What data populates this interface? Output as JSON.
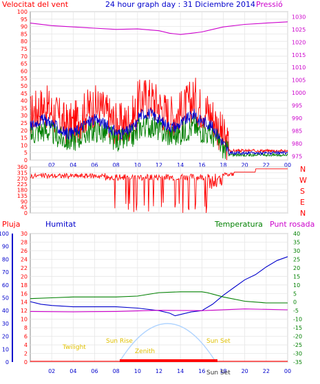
{
  "header": {
    "title": "24 hour graph day : 31 Diciembre 2014",
    "left_label": "Velocitat del vent",
    "right_label": "Pressió"
  },
  "wind_dir_labels": [
    "N",
    "W",
    "S",
    "E",
    "N"
  ],
  "bottom_labels": {
    "pluja": "Pluja",
    "humitat": "Humitat",
    "temperatura": "Temperatura",
    "punt_rosada": "Punt rosada"
  },
  "sun_labels": {
    "twilight_am": "Twilight",
    "sun_rise": "Sun Rise",
    "zenith": "Zenith",
    "sun_set": "Sun Set",
    "twilight_pm": "Sun Set"
  },
  "colors": {
    "red": "#ff0000",
    "blue": "#0000cc",
    "green": "#008000",
    "magenta": "#cc00cc",
    "sun": "#b0d4ff",
    "sunlabel": "#e0c000"
  },
  "chart_data": [
    {
      "type": "line",
      "name": "wind_and_pressure",
      "x_ticks": [
        "02",
        "04",
        "06",
        "08",
        "10",
        "12",
        "14",
        "16",
        "18",
        "20",
        "22",
        "00"
      ],
      "left_axis": [
        0,
        5,
        10,
        15,
        20,
        25,
        30,
        35,
        40,
        45,
        50,
        55,
        60,
        65,
        70,
        75,
        80,
        85,
        90,
        95,
        100
      ],
      "right_axis": [
        975,
        980,
        985,
        990,
        995,
        1000,
        1005,
        1010,
        1015,
        1020,
        1025,
        1030
      ],
      "left_ylim": [
        0,
        100
      ],
      "right_ylim": [
        973.5,
        1032
      ],
      "series": [
        {
          "name": "Pressió",
          "axis": "right",
          "x": [
            0,
            2,
            4,
            6,
            8,
            10,
            12,
            13,
            14,
            15,
            16,
            17,
            18,
            20,
            22,
            24
          ],
          "values": [
            1027.5,
            1026.5,
            1026,
            1025.5,
            1025,
            1025.2,
            1024.5,
            1023.5,
            1023,
            1023.5,
            1024,
            1025,
            1026,
            1027,
            1027.5,
            1028
          ]
        }
      ]
    },
    {
      "type": "line",
      "name": "wind_direction",
      "y_ticks": [
        0,
        45,
        90,
        135,
        180,
        225,
        270,
        315,
        360
      ],
      "ylim": [
        0,
        360
      ]
    },
    {
      "type": "line",
      "name": "hum_temp_rain",
      "left_axis_rain": [
        0,
        10,
        20,
        30,
        40,
        50,
        60,
        70,
        80,
        90,
        100
      ],
      "left_axis_hum": [
        0,
        2,
        4,
        6,
        8,
        10,
        12,
        14,
        16,
        18,
        20,
        22,
        24,
        26,
        28,
        30
      ],
      "right_axis_temp": [
        40,
        35,
        30,
        25,
        20,
        15,
        10,
        5,
        0,
        -5,
        -10,
        -15,
        -20,
        -25,
        -30,
        -35
      ],
      "series": [
        {
          "name": "Humitat",
          "x": [
            0,
            1,
            2,
            4,
            6,
            8,
            10,
            12,
            13,
            13.5,
            14,
            15,
            16,
            17,
            18,
            19,
            20,
            21,
            22,
            23,
            24
          ],
          "values": [
            47,
            45,
            44,
            43,
            43,
            43,
            42,
            40,
            38,
            36,
            37,
            39,
            40,
            45,
            52,
            58,
            64,
            68,
            74,
            79,
            82
          ]
        },
        {
          "name": "Temperatura",
          "x": [
            0,
            2,
            4,
            6,
            8,
            10,
            11,
            12,
            14,
            16,
            16.5,
            18,
            20,
            22,
            24
          ],
          "values": [
            2,
            2.5,
            3,
            3,
            3,
            3.5,
            4.5,
            5.5,
            6,
            6,
            5.5,
            3,
            0.5,
            -0.5,
            -0.5
          ]
        },
        {
          "name": "Punt rosada",
          "x": [
            0,
            4,
            8,
            12,
            16,
            20,
            24
          ],
          "values": [
            -5.5,
            -5.7,
            -5.5,
            -4.8,
            -5,
            -4,
            -4.5
          ]
        }
      ]
    }
  ]
}
